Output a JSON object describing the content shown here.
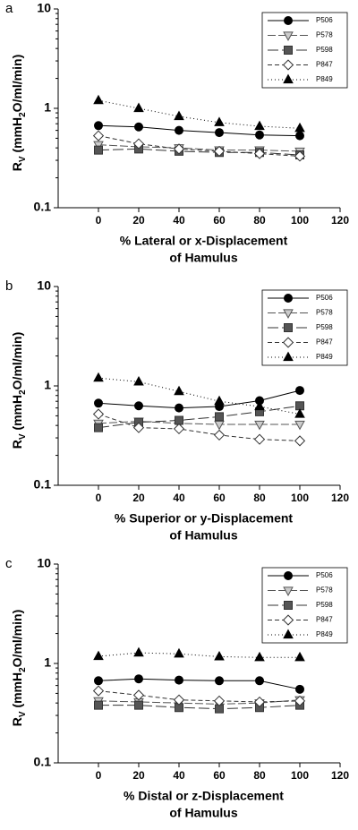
{
  "chart_data": [
    {
      "type": "line",
      "panel": "a",
      "log_y": true,
      "xlabel": [
        "% Lateral or x-Displacement",
        "of Hamulus"
      ],
      "ylabel": [
        "R",
        "V",
        " (mmH",
        "2",
        "O/ml/min)"
      ],
      "x": [
        0,
        20,
        40,
        60,
        80,
        100
      ],
      "xlim": [
        -20,
        120
      ],
      "xticks": [
        0,
        20,
        40,
        60,
        80,
        100,
        120
      ],
      "ylim": [
        0.1,
        10
      ],
      "yticks": [
        0.1,
        1,
        10
      ],
      "legend": "upper right",
      "series": [
        {
          "name": "P506",
          "color": "#000000",
          "marker": "circle",
          "marker_fill": "#000000",
          "dash": "none",
          "values": [
            0.67,
            0.65,
            0.6,
            0.57,
            0.54,
            0.53
          ]
        },
        {
          "name": "P578",
          "color": "#555555",
          "marker": "triangle-down",
          "marker_fill": "#cccccc",
          "dash": "9,3",
          "values": [
            0.43,
            0.41,
            0.4,
            0.38,
            0.38,
            0.37
          ]
        },
        {
          "name": "P598",
          "color": "#333333",
          "marker": "square",
          "marker_fill": "#555555",
          "dash": "12,4",
          "values": [
            0.38,
            0.39,
            0.37,
            0.36,
            0.36,
            0.34
          ]
        },
        {
          "name": "P847",
          "color": "#333333",
          "marker": "diamond",
          "marker_fill": "#ffffff",
          "dash": "5,3",
          "values": [
            0.53,
            0.44,
            0.39,
            0.37,
            0.35,
            0.33
          ]
        },
        {
          "name": "P849",
          "color": "#000000",
          "marker": "triangle-up",
          "marker_fill": "#000000",
          "dash": "1,3",
          "values": [
            1.2,
            1.0,
            0.83,
            0.72,
            0.66,
            0.63
          ]
        }
      ]
    },
    {
      "type": "line",
      "panel": "b",
      "log_y": true,
      "xlabel": [
        "% Superior or y-Displacement",
        "of Hamulus"
      ],
      "ylabel": [
        "R",
        "V",
        " (mmH",
        "2",
        "O/ml/min)"
      ],
      "x": [
        0,
        20,
        40,
        60,
        80,
        100
      ],
      "xlim": [
        -20,
        120
      ],
      "xticks": [
        0,
        20,
        40,
        60,
        80,
        100,
        120
      ],
      "ylim": [
        0.1,
        10
      ],
      "yticks": [
        0.1,
        1,
        10
      ],
      "legend": "upper right",
      "series": [
        {
          "name": "P506",
          "color": "#000000",
          "marker": "circle",
          "marker_fill": "#000000",
          "dash": "none",
          "values": [
            0.67,
            0.63,
            0.6,
            0.62,
            0.71,
            0.9
          ]
        },
        {
          "name": "P578",
          "color": "#555555",
          "marker": "triangle-down",
          "marker_fill": "#cccccc",
          "dash": "9,3",
          "values": [
            0.42,
            0.44,
            0.42,
            0.41,
            0.41,
            0.41
          ]
        },
        {
          "name": "P598",
          "color": "#333333",
          "marker": "square",
          "marker_fill": "#555555",
          "dash": "12,4",
          "values": [
            0.38,
            0.43,
            0.45,
            0.49,
            0.55,
            0.63
          ]
        },
        {
          "name": "P847",
          "color": "#333333",
          "marker": "diamond",
          "marker_fill": "#ffffff",
          "dash": "5,3",
          "values": [
            0.52,
            0.38,
            0.37,
            0.32,
            0.29,
            0.28
          ]
        },
        {
          "name": "P849",
          "color": "#000000",
          "marker": "triangle-up",
          "marker_fill": "#000000",
          "dash": "1,3",
          "values": [
            1.2,
            1.1,
            0.88,
            0.7,
            0.62,
            0.52
          ]
        }
      ]
    },
    {
      "type": "line",
      "panel": "c",
      "log_y": true,
      "xlabel": [
        "% Distal or z-Displacement",
        "of Hamulus"
      ],
      "ylabel": [
        "R",
        "V",
        " (mmH",
        "2",
        "O/ml/min)"
      ],
      "x": [
        0,
        20,
        40,
        60,
        80,
        100
      ],
      "xlim": [
        -20,
        120
      ],
      "xticks": [
        0,
        20,
        40,
        60,
        80,
        100,
        120
      ],
      "ylim": [
        0.1,
        10
      ],
      "yticks": [
        0.1,
        1,
        10
      ],
      "legend": "upper right",
      "series": [
        {
          "name": "P506",
          "color": "#000000",
          "marker": "circle",
          "marker_fill": "#000000",
          "dash": "none",
          "values": [
            0.67,
            0.7,
            0.68,
            0.67,
            0.67,
            0.55
          ]
        },
        {
          "name": "P578",
          "color": "#555555",
          "marker": "triangle-down",
          "marker_fill": "#cccccc",
          "dash": "9,3",
          "values": [
            0.42,
            0.41,
            0.4,
            0.39,
            0.4,
            0.43
          ]
        },
        {
          "name": "P598",
          "color": "#333333",
          "marker": "square",
          "marker_fill": "#555555",
          "dash": "12,4",
          "values": [
            0.38,
            0.38,
            0.36,
            0.35,
            0.36,
            0.38
          ]
        },
        {
          "name": "P847",
          "color": "#333333",
          "marker": "diamond",
          "marker_fill": "#ffffff",
          "dash": "5,3",
          "values": [
            0.53,
            0.48,
            0.43,
            0.42,
            0.41,
            0.42
          ]
        },
        {
          "name": "P849",
          "color": "#000000",
          "marker": "triangle-up",
          "marker_fill": "#000000",
          "dash": "1,3",
          "values": [
            1.18,
            1.28,
            1.25,
            1.17,
            1.15,
            1.15
          ]
        }
      ]
    }
  ]
}
